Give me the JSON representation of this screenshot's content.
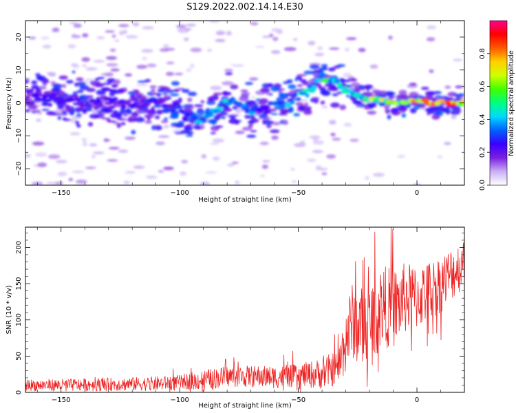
{
  "title": "S129.2022.002.14.14.E30",
  "chart_data": [
    {
      "type": "heatmap",
      "xlabel": "Height of straight line (km)",
      "ylabel": "Frequency (Hz)",
      "xlim": [
        -165,
        20
      ],
      "ylim": [
        -25,
        25
      ],
      "x_ticks": [
        -150,
        -100,
        -50,
        0
      ],
      "x_tick_labels": [
        "−150",
        "−100",
        "−50",
        "0"
      ],
      "y_ticks": [
        20,
        10,
        0,
        -10,
        -20
      ],
      "y_tick_labels": [
        "20",
        "10",
        "0",
        "−10",
        "−20"
      ],
      "colorbar": {
        "label": "Normalized spectral amplitude",
        "range": [
          0,
          1
        ],
        "ticks": [
          0.0,
          0.2,
          0.4,
          0.6,
          0.8
        ],
        "tick_labels": [
          "0.0",
          "0.2",
          "0.4",
          "0.6",
          "0.8"
        ],
        "colormap": [
          "#ffffff",
          "#c9b0f5",
          "#7b1fe0",
          "#3a00ff",
          "#0060ff",
          "#00d8ff",
          "#00ff80",
          "#40ff00",
          "#d0ff00",
          "#ffd000",
          "#ff5a00",
          "#ff0000",
          "#ff0090"
        ]
      },
      "ridge": {
        "x": [
          -165,
          -150,
          -140,
          -130,
          -120,
          -110,
          -100,
          -95,
          -90,
          -85,
          -80,
          -75,
          -70,
          -65,
          -60,
          -55,
          -50,
          -45,
          -40,
          -35,
          -30,
          -25,
          -20,
          -15,
          -10,
          -5,
          0,
          5,
          10,
          15,
          18
        ],
        "y": [
          2,
          2,
          0,
          1,
          -1,
          0,
          -2,
          -4,
          -5,
          -2,
          0,
          -1,
          -2,
          -2,
          -1,
          0,
          2,
          4,
          8,
          6,
          4,
          2,
          1,
          1,
          0,
          0,
          1,
          0,
          0,
          0,
          0
        ],
        "peak_amplitude": [
          0.25,
          0.3,
          0.3,
          0.25,
          0.3,
          0.3,
          0.35,
          0.45,
          0.5,
          0.45,
          0.45,
          0.4,
          0.4,
          0.35,
          0.4,
          0.45,
          0.5,
          0.5,
          0.6,
          0.55,
          0.55,
          0.6,
          0.7,
          0.8,
          0.8,
          0.85,
          0.85,
          0.85,
          0.9,
          0.95,
          0.95
        ]
      }
    },
    {
      "type": "line",
      "xlabel": "Height of straight line (km)",
      "ylabel": "SNR (10 * v/v)",
      "xlim": [
        -165,
        20
      ],
      "ylim": [
        0,
        228
      ],
      "x_ticks": [
        -150,
        -100,
        -50,
        0
      ],
      "x_tick_labels": [
        "−150",
        "−100",
        "−50",
        "0"
      ],
      "y_ticks": [
        0,
        50,
        100,
        150,
        200
      ],
      "y_tick_labels": [
        "0",
        "50",
        "100",
        "150",
        "200"
      ],
      "series": [
        {
          "color": "#ee2222",
          "baseline": {
            "x": [
              -165,
              -150,
              -130,
              -110,
              -100,
              -90,
              -80,
              -70,
              -60,
              -50,
              -40,
              -33,
              -30,
              -27,
              -25,
              -20,
              -15,
              -10,
              -5,
              0,
              5,
              10,
              15,
              20
            ],
            "y": [
              10,
              10,
              11,
              12,
              14,
              17,
              22,
              22,
              21,
              23,
              26,
              35,
              75,
              100,
              90,
              90,
              120,
              115,
              130,
              130,
              140,
              150,
              165,
              180
            ]
          },
          "noise_amplitude": {
            "x": [
              -165,
              -100,
              -90,
              -50,
              -33,
              -30,
              -20,
              -10,
              0,
              20
            ],
            "y": [
              8,
              10,
              14,
              16,
              25,
              50,
              60,
              55,
              45,
              35
            ]
          }
        }
      ]
    }
  ]
}
